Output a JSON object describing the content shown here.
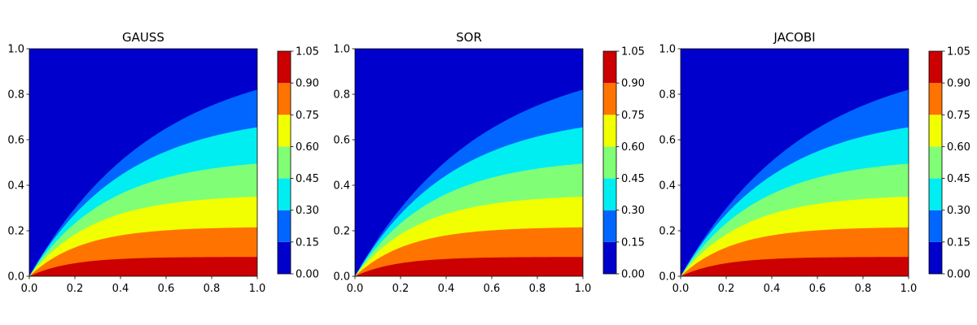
{
  "figure": {
    "background": "#ffffff"
  },
  "chart_data": [
    {
      "type": "heatmap",
      "subtype": "filled-contour",
      "title": "GAUSS",
      "xlabel": "",
      "ylabel": "",
      "xlim": [
        0.0,
        1.0
      ],
      "ylim": [
        0.0,
        1.0
      ],
      "xticks": [
        "0.0",
        "0.2",
        "0.4",
        "0.6",
        "0.8",
        "1.0"
      ],
      "yticks": [
        "0.0",
        "0.2",
        "0.4",
        "0.6",
        "0.8",
        "1.0"
      ],
      "grid": false,
      "colormap": "jet",
      "colorbar": {
        "levels": [
          0.0,
          0.15,
          0.3,
          0.45,
          0.6,
          0.75,
          0.9,
          1.05
        ],
        "tick_labels": [
          "0.00",
          "0.15",
          "0.30",
          "0.45",
          "0.60",
          "0.75",
          "0.90",
          "1.05"
        ],
        "colors": [
          "#0000cc",
          "#0066ff",
          "#00eef2",
          "#80ff76",
          "#f2ff00",
          "#ff7300",
          "#cc0000"
        ]
      },
      "contour_heights_at_x1": [
        0.085,
        0.215,
        0.35,
        0.495,
        0.655,
        0.82
      ]
    },
    {
      "type": "heatmap",
      "subtype": "filled-contour",
      "title": "SOR",
      "xlabel": "",
      "ylabel": "",
      "xlim": [
        0.0,
        1.0
      ],
      "ylim": [
        0.0,
        1.0
      ],
      "xticks": [
        "0.0",
        "0.2",
        "0.4",
        "0.6",
        "0.8",
        "1.0"
      ],
      "yticks": [
        "0.0",
        "0.2",
        "0.4",
        "0.6",
        "0.8",
        "1.0"
      ],
      "grid": false,
      "colormap": "jet",
      "colorbar": {
        "levels": [
          0.0,
          0.15,
          0.3,
          0.45,
          0.6,
          0.75,
          0.9,
          1.05
        ],
        "tick_labels": [
          "0.00",
          "0.15",
          "0.30",
          "0.45",
          "0.60",
          "0.75",
          "0.90",
          "1.05"
        ],
        "colors": [
          "#0000cc",
          "#0066ff",
          "#00eef2",
          "#80ff76",
          "#f2ff00",
          "#ff7300",
          "#cc0000"
        ]
      },
      "contour_heights_at_x1": [
        0.085,
        0.215,
        0.35,
        0.495,
        0.655,
        0.82
      ]
    },
    {
      "type": "heatmap",
      "subtype": "filled-contour",
      "title": "JACOBI",
      "xlabel": "",
      "ylabel": "",
      "xlim": [
        0.0,
        1.0
      ],
      "ylim": [
        0.0,
        1.0
      ],
      "xticks": [
        "0.0",
        "0.2",
        "0.4",
        "0.6",
        "0.8",
        "1.0"
      ],
      "yticks": [
        "0.0",
        "0.2",
        "0.4",
        "0.6",
        "0.8",
        "1.0"
      ],
      "grid": false,
      "colormap": "jet",
      "colorbar": {
        "levels": [
          0.0,
          0.15,
          0.3,
          0.45,
          0.6,
          0.75,
          0.9,
          1.05
        ],
        "tick_labels": [
          "0.00",
          "0.15",
          "0.30",
          "0.45",
          "0.60",
          "0.75",
          "0.90",
          "1.05"
        ],
        "colors": [
          "#0000cc",
          "#0066ff",
          "#00eef2",
          "#80ff76",
          "#f2ff00",
          "#ff7300",
          "#cc0000"
        ]
      },
      "contour_heights_at_x1": [
        0.085,
        0.215,
        0.35,
        0.495,
        0.655,
        0.82
      ]
    }
  ]
}
